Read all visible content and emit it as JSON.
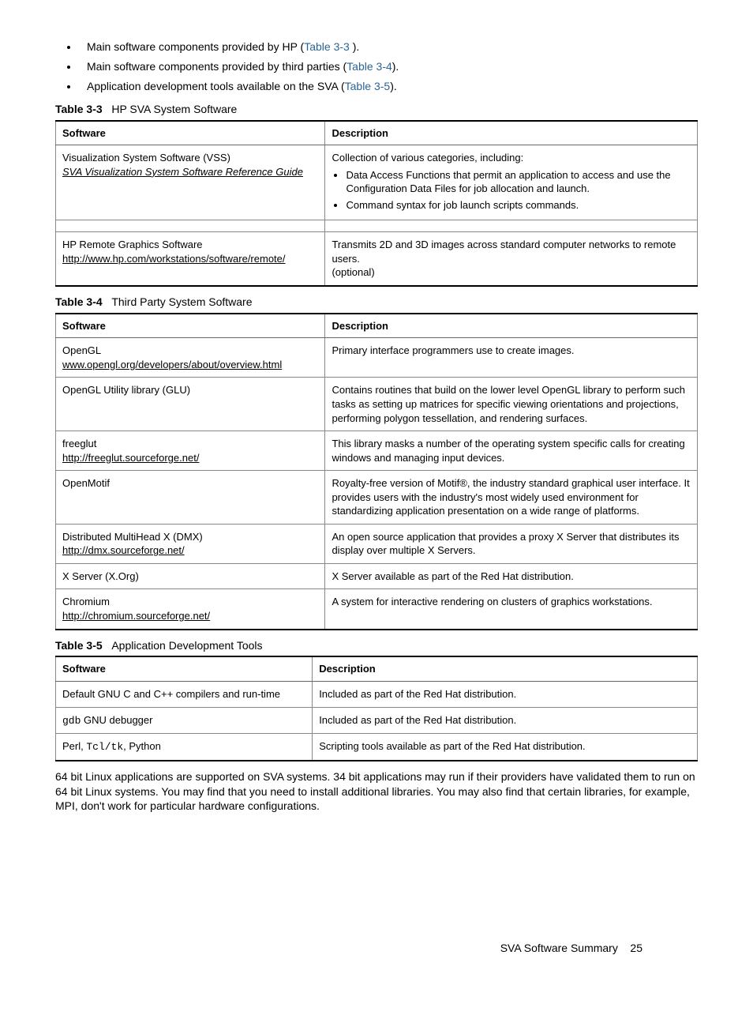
{
  "bullets": [
    {
      "pre": "Main software components provided by HP (",
      "ref": "Table 3-3",
      "post": " )."
    },
    {
      "pre": "Main software components provided by third parties (",
      "ref": "Table  3-4",
      "post": ")."
    },
    {
      "pre": "Application development tools available on the SVA (",
      "ref": "Table  3-5",
      "post": ")."
    }
  ],
  "tables": {
    "t33": {
      "caption_label": "Table  3-3",
      "caption_title": "HP SVA System Software",
      "head_soft": "Software",
      "head_desc": "Description",
      "r1": {
        "soft_line1": "Visualization System Software (VSS)",
        "soft_link": "SVA Visualization System Software Reference Guide",
        "desc_intro": "Collection of various categories, including:",
        "desc_b1": "Data Access Functions that permit an application to access and use the Configuration Data Files for job allocation and launch.",
        "desc_b2": "Command syntax for job launch scripts commands."
      },
      "r2": {
        "soft_line1": "HP Remote Graphics Software",
        "soft_link": "http://www.hp.com/workstations/software/remote/",
        "desc_l1": "Transmits 2D and 3D images across standard computer networks to remote users.",
        "desc_l2": "(optional)"
      }
    },
    "t34": {
      "caption_label": "Table  3-4",
      "caption_title": "Third Party System Software",
      "head_soft": "Software",
      "head_desc": "Description",
      "rows": [
        {
          "s1": "OpenGL",
          "slink": "www.opengl.org/developers/about/overview.html",
          "d": "Primary interface programmers use to create images."
        },
        {
          "s1": "OpenGL Utility library (GLU)",
          "slink": "",
          "d": "Contains routines that build on the lower level OpenGL library to perform such tasks as setting up matrices for specific viewing orientations and projections, performing polygon tessellation, and rendering surfaces."
        },
        {
          "s1": "freeglut",
          "slink": "http://freeglut.sourceforge.net/",
          "d": "This library masks a number of the operating system specific calls for creating windows and managing input devices."
        },
        {
          "s1": "OpenMotif",
          "slink": "",
          "d": "Royalty-free version of Motif®, the industry standard graphical user interface. It provides users with the industry's most widely used environment for standardizing application presentation on a wide range of platforms."
        },
        {
          "s1": "Distributed MultiHead X (DMX)",
          "slink": "http://dmx.sourceforge.net/",
          "d": "An open source application that provides a proxy X Server that distributes its display over multiple X Servers."
        },
        {
          "s1": "X Server (X.Org)",
          "slink": "",
          "d": "X Server available as part of the Red Hat distribution."
        },
        {
          "s1": "Chromium",
          "slink": "http://chromium.sourceforge.net/",
          "d": "A system for interactive rendering on clusters of graphics workstations."
        }
      ]
    },
    "t35": {
      "caption_label": "Table  3-5",
      "caption_title": "Application Development Tools",
      "head_soft": "Software",
      "head_desc": "Description",
      "rows": [
        {
          "s": "Default GNU C and C++ compilers and run-time",
          "d": "Included as part of the Red Hat distribution."
        },
        {
          "smono": "gdb",
          "sPost": " GNU debugger",
          "d": "Included as part of the Red Hat distribution."
        },
        {
          "sPre": "Perl, ",
          "smono": "Tcl/tk",
          "sPost": ", Python",
          "d": "Scripting tools available as part of the Red Hat distribution."
        }
      ]
    }
  },
  "paragraph": "64 bit Linux applications are supported on SVA systems. 34 bit applications may run if their providers have validated them to run on 64 bit Linux systems. You may find that you need to install additional libraries. You may also find that certain libraries, for example, MPI, don't work for particular hardware configurations.",
  "footer": {
    "text": "SVA Software Summary",
    "page": "25"
  }
}
